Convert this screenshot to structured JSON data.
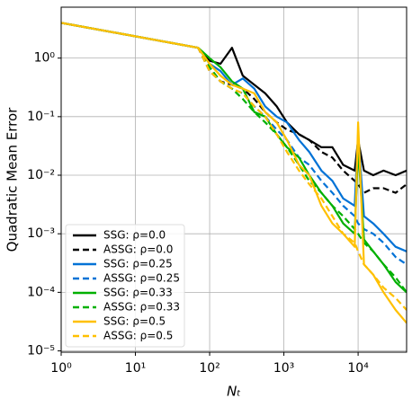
{
  "chart_data": {
    "type": "line",
    "xlabel": "Nₜ",
    "ylabel": "Quadratic Mean Error",
    "log_x": true,
    "log_y": true,
    "grid": true,
    "legend": "lower left",
    "xlim": [
      1,
      45000
    ],
    "ylim": [
      9.5e-06,
      7.4
    ],
    "xticks": [
      {
        "value": 1,
        "label": "10⁰"
      },
      {
        "value": 10,
        "label": "10¹"
      },
      {
        "value": 100,
        "label": "10²"
      },
      {
        "value": 1000,
        "label": "10³"
      },
      {
        "value": 10000,
        "label": "10⁴"
      }
    ],
    "yticks": [
      {
        "value": 1e-05,
        "label": "10⁻⁵"
      },
      {
        "value": 0.0001,
        "label": "10⁻⁴"
      },
      {
        "value": 0.001,
        "label": "10⁻³"
      },
      {
        "value": 0.01,
        "label": "10⁻²"
      },
      {
        "value": 0.1,
        "label": "10⁻¹"
      },
      {
        "value": 1,
        "label": "10⁰"
      }
    ],
    "x": [
      1,
      70,
      100,
      140,
      200,
      280,
      400,
      560,
      800,
      1100,
      1600,
      2200,
      3200,
      4500,
      6300,
      9000,
      10000,
      12000,
      16000,
      22000,
      32000,
      45000
    ],
    "series": [
      {
        "name": "SSG: ρ=0.0",
        "color": "#000000",
        "dash": false,
        "values": [
          4,
          1.5,
          0.9,
          0.8,
          1.5,
          0.5,
          0.35,
          0.25,
          0.15,
          0.08,
          0.05,
          0.04,
          0.03,
          0.03,
          0.015,
          0.012,
          0.04,
          0.012,
          0.01,
          0.012,
          0.01,
          0.012
        ]
      },
      {
        "name": "ASSG: ρ=0.0",
        "color": "#000000",
        "dash": true,
        "values": [
          4,
          1.5,
          0.6,
          0.4,
          0.35,
          0.3,
          0.2,
          0.12,
          0.08,
          0.06,
          0.05,
          0.04,
          0.025,
          0.02,
          0.012,
          0.008,
          0.007,
          0.005,
          0.006,
          0.006,
          0.005,
          0.007
        ]
      },
      {
        "name": "SSG: ρ=0.25",
        "color": "#0072d6",
        "dash": false,
        "values": [
          4,
          1.5,
          0.8,
          0.6,
          0.35,
          0.45,
          0.3,
          0.15,
          0.1,
          0.08,
          0.04,
          0.025,
          0.012,
          0.008,
          0.004,
          0.003,
          0.05,
          0.002,
          0.0015,
          0.001,
          0.0006,
          0.0005
        ]
      },
      {
        "name": "ASSG: ρ=0.25",
        "color": "#0072d6",
        "dash": true,
        "values": [
          4,
          1.5,
          0.7,
          0.4,
          0.3,
          0.25,
          0.15,
          0.1,
          0.06,
          0.04,
          0.02,
          0.015,
          0.008,
          0.005,
          0.003,
          0.002,
          0.0015,
          0.0012,
          0.001,
          0.0007,
          0.0004,
          0.0003
        ]
      },
      {
        "name": "SSG: ρ=0.33",
        "color": "#00b000",
        "dash": false,
        "values": [
          4,
          1.5,
          1.0,
          0.7,
          0.4,
          0.3,
          0.12,
          0.1,
          0.05,
          0.03,
          0.02,
          0.01,
          0.005,
          0.003,
          0.0015,
          0.001,
          0.03,
          0.0008,
          0.0005,
          0.0003,
          0.00015,
          0.0001
        ]
      },
      {
        "name": "ASSG: ρ=0.33",
        "color": "#00b000",
        "dash": true,
        "values": [
          4,
          1.5,
          0.7,
          0.4,
          0.3,
          0.2,
          0.12,
          0.08,
          0.05,
          0.03,
          0.015,
          0.008,
          0.005,
          0.003,
          0.002,
          0.0012,
          0.001,
          0.0007,
          0.0005,
          0.0003,
          0.00018,
          0.0001
        ]
      },
      {
        "name": "SSG: ρ=0.5",
        "color": "#ffc000",
        "dash": false,
        "values": [
          4,
          1.5,
          0.8,
          0.5,
          0.35,
          0.3,
          0.25,
          0.12,
          0.08,
          0.04,
          0.015,
          0.01,
          0.003,
          0.0015,
          0.001,
          0.0006,
          0.08,
          0.0003,
          0.0002,
          0.0001,
          5e-05,
          3e-05
        ]
      },
      {
        "name": "ASSG: ρ=0.5",
        "color": "#ffc000",
        "dash": true,
        "values": [
          4,
          1.5,
          0.6,
          0.4,
          0.3,
          0.25,
          0.15,
          0.1,
          0.05,
          0.025,
          0.012,
          0.007,
          0.004,
          0.002,
          0.001,
          0.0007,
          0.0005,
          0.0003,
          0.0002,
          0.00012,
          8e-05,
          5e-05
        ]
      }
    ]
  }
}
